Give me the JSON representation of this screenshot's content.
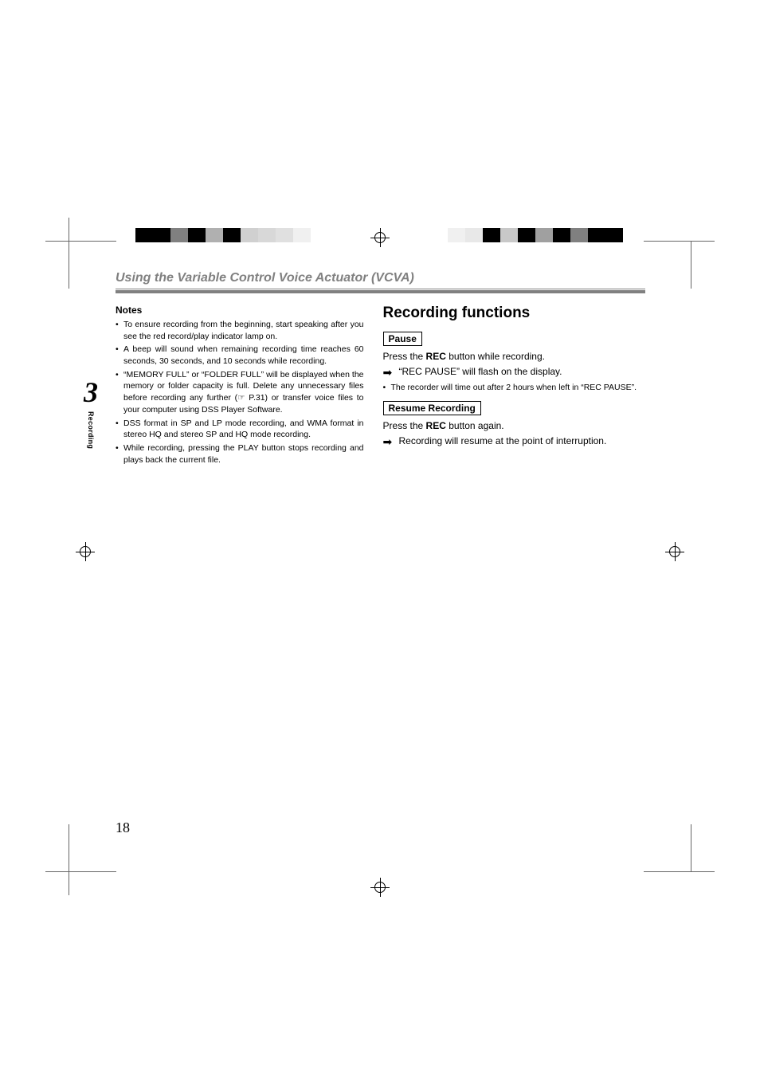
{
  "marks": {
    "colorbar_left": [
      "#000000",
      "#000000",
      "#808080",
      "#000000",
      "#b0b0b0",
      "#000000",
      "#d0d0d0",
      "#d8d8d8",
      "#e0e0e0",
      "#f0f0f0",
      "#ffffff"
    ],
    "colorbar_right": [
      "#ffffff",
      "#f0f0f0",
      "#e8e8e8",
      "#000000",
      "#c8c8c8",
      "#000000",
      "#a0a0a0",
      "#000000",
      "#808080",
      "#000000",
      "#000000"
    ]
  },
  "section_title": "Using the Variable Control Voice Actuator (VCVA)",
  "chapter_number": "3",
  "chapter_label": "Recording",
  "notes_heading": "Notes",
  "notes": [
    "To ensure recording from the beginning, start speaking after you see the red record/play indicator lamp on.",
    "A beep will sound when remaining recording time reaches 60 seconds, 30 seconds, and 10 seconds while recording.",
    "“MEMORY FULL” or “FOLDER FULL” will be displayed when the memory or folder capacity is full. Delete any unnecessary files before recording any further (☞ P.31) or transfer voice files to your computer using DSS Player Software.",
    "DSS format in SP and LP mode recording, and WMA format in stereo HQ and stereo SP and HQ mode recording.",
    "While recording, pressing the PLAY button stops recording and plays back the current file."
  ],
  "right": {
    "heading": "Recording functions",
    "pause": {
      "label": "Pause",
      "line_prefix": "Press the ",
      "line_bold": "REC",
      "line_suffix": " button while recording.",
      "arrow": "“REC PAUSE” will flash on the display.",
      "bullet": "The recorder will time out after 2 hours when left in “REC PAUSE”."
    },
    "resume": {
      "label": "Resume Recording",
      "line_prefix": "Press the ",
      "line_bold": "REC",
      "line_suffix": " button again.",
      "arrow": "Recording will resume at the point of interruption."
    }
  },
  "page_number": "18"
}
